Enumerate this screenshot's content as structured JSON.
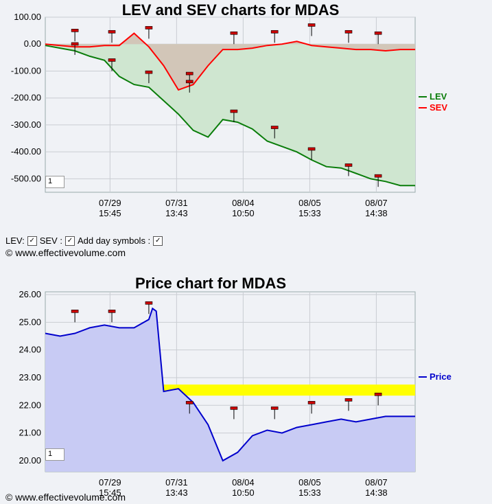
{
  "lev_chart": {
    "title": "LEV and SEV charts for MDAS",
    "y_ticks": [
      "100.00",
      "0.00",
      "-100.00",
      "-200.00",
      "-300.00",
      "-400.00",
      "-500.00"
    ],
    "x_ticks": [
      {
        "date": "07/29",
        "time": "15:45"
      },
      {
        "date": "07/31",
        "time": "13:43"
      },
      {
        "date": "08/04",
        "time": "10:50"
      },
      {
        "date": "08/05",
        "time": "15:33"
      },
      {
        "date": "08/07",
        "time": "14:38"
      }
    ],
    "legend": [
      {
        "name": "LEV",
        "color": "#0a7d0a"
      },
      {
        "name": "SEV",
        "color": "#ff0000"
      }
    ],
    "input_value": "1"
  },
  "controls": {
    "lev_label": "LEV:",
    "sev_label": "SEV :",
    "day_symbols_label": "Add day symbols :",
    "check": "✓"
  },
  "copyright": "© www.effectivevolume.com",
  "price_chart": {
    "title": "Price chart for MDAS",
    "y_ticks": [
      "26.00",
      "25.00",
      "24.00",
      "23.00",
      "22.00",
      "21.00",
      "20.00"
    ],
    "x_ticks": [
      {
        "date": "07/29",
        "time": "15:45"
      },
      {
        "date": "07/31",
        "time": "13:43"
      },
      {
        "date": "08/04",
        "time": "10:50"
      },
      {
        "date": "08/05",
        "time": "15:33"
      },
      {
        "date": "08/07",
        "time": "14:38"
      }
    ],
    "legend": [
      {
        "name": "Price",
        "color": "#0000cc"
      }
    ],
    "input_value": "1"
  },
  "chart_data": [
    {
      "type": "line",
      "title": "LEV and SEV charts for MDAS",
      "ylim": [
        -550,
        100
      ],
      "x": [
        0,
        4,
        8,
        12,
        16,
        20,
        24,
        28,
        32,
        36,
        40,
        44,
        48,
        52,
        56,
        60,
        64,
        68,
        72,
        76,
        80,
        84,
        88,
        92,
        96,
        100
      ],
      "series": [
        {
          "name": "LEV",
          "color": "#0a7d0a",
          "values": [
            -5,
            -15,
            -25,
            -45,
            -60,
            -120,
            -150,
            -160,
            -210,
            -260,
            -320,
            -345,
            -280,
            -290,
            -315,
            -360,
            -380,
            -400,
            -430,
            -455,
            -460,
            -480,
            -500,
            -510,
            -525,
            -525
          ]
        },
        {
          "name": "SEV",
          "color": "#ff0000",
          "values": [
            0,
            -5,
            -10,
            -10,
            -5,
            -5,
            40,
            -10,
            -80,
            -170,
            -150,
            -80,
            -20,
            -20,
            -15,
            -5,
            0,
            10,
            -5,
            -10,
            -15,
            -20,
            -20,
            -25,
            -20,
            -20
          ]
        }
      ],
      "x_ticks": [
        "07/29 15:45",
        "07/31 13:43",
        "08/04 10:50",
        "08/05 15:33",
        "08/07 14:38"
      ]
    },
    {
      "type": "area",
      "title": "Price chart for MDAS",
      "ylim": [
        19.6,
        26.1
      ],
      "x": [
        0,
        4,
        8,
        12,
        16,
        20,
        24,
        28,
        29,
        30,
        32,
        36,
        40,
        44,
        48,
        52,
        56,
        60,
        64,
        68,
        72,
        76,
        80,
        84,
        88,
        92,
        96,
        100
      ],
      "series": [
        {
          "name": "Price",
          "color": "#0000cc",
          "values": [
            24.6,
            24.5,
            24.6,
            24.8,
            24.9,
            24.8,
            24.8,
            25.1,
            25.5,
            25.4,
            22.5,
            22.6,
            22.1,
            21.3,
            20.0,
            20.3,
            20.9,
            21.1,
            21.0,
            21.2,
            21.3,
            21.4,
            21.5,
            21.4,
            21.5,
            21.6,
            21.6,
            21.6
          ]
        }
      ],
      "highlight_band": {
        "low": 22.35,
        "high": 22.75,
        "color": "#ffff00"
      },
      "x_ticks": [
        "07/29 15:45",
        "07/31 13:43",
        "08/04 10:50",
        "08/05 15:33",
        "08/07 14:38"
      ]
    }
  ]
}
